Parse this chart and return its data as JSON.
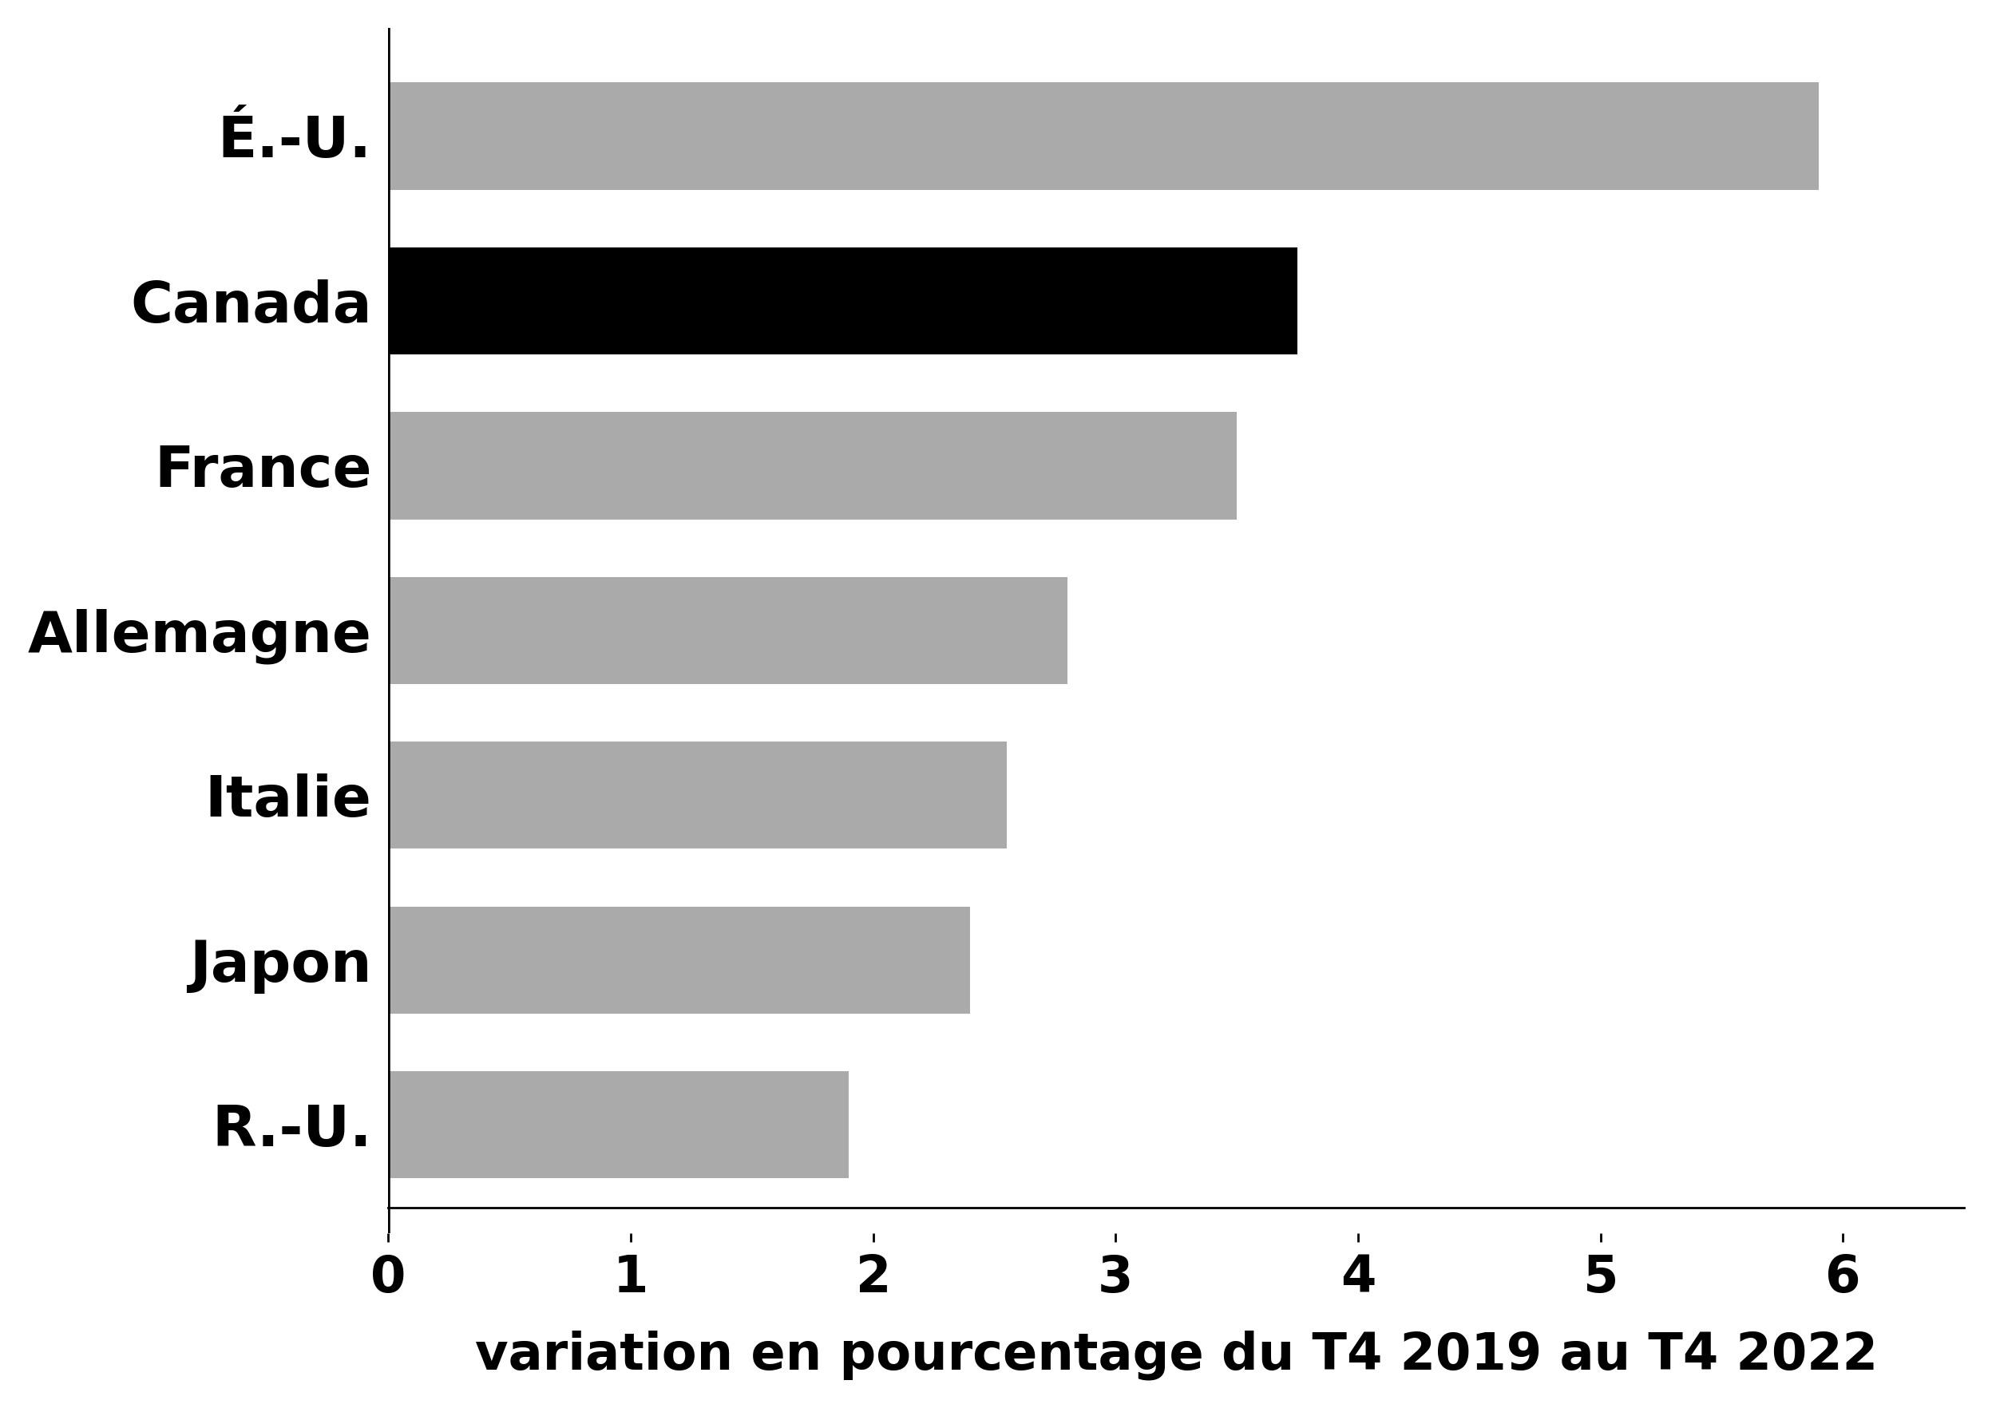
{
  "categories": [
    "R.-U.",
    "Japon",
    "Italie",
    "Allemagne",
    "France",
    "Canada",
    "É.-U."
  ],
  "values": [
    1.9,
    2.4,
    2.55,
    2.8,
    3.5,
    3.75,
    5.9
  ],
  "bar_colors": [
    "#aaaaaa",
    "#aaaaaa",
    "#aaaaaa",
    "#aaaaaa",
    "#aaaaaa",
    "#000000",
    "#aaaaaa"
  ],
  "xlabel": "variation en pourcentage du T4 2019 au T4 2022",
  "xlim": [
    0,
    6.5
  ],
  "xticks": [
    0,
    1,
    2,
    3,
    4,
    5,
    6
  ],
  "background_color": "#ffffff",
  "bar_height": 0.65,
  "label_fontsize": 52,
  "xlabel_fontsize": 46,
  "tick_fontsize": 46,
  "fontweight": "bold"
}
